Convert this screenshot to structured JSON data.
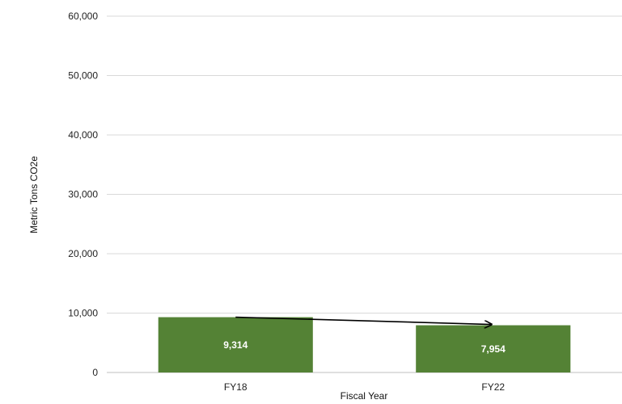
{
  "chart_data": {
    "type": "bar",
    "title": "",
    "xlabel": "Fiscal Year",
    "ylabel": "Metric Tons CO2e",
    "categories": [
      "FY18",
      "FY22"
    ],
    "values": [
      9314,
      7954
    ],
    "value_labels": [
      "9,314",
      "7,954"
    ],
    "ylim": [
      0,
      60000
    ],
    "yticks": [
      0,
      10000,
      20000,
      30000,
      40000,
      50000,
      60000
    ],
    "ytick_labels": [
      "0",
      "10,000",
      "20,000",
      "30,000",
      "40,000",
      "50,000",
      "60,000"
    ],
    "grid": true,
    "legend": "none",
    "annotations": [
      {
        "type": "trend-arrow",
        "from": "FY18",
        "to": "FY22"
      }
    ]
  },
  "colors": {
    "bar": "#548235",
    "bar_label": "#ffffff",
    "gridline": "#d9d9d9",
    "arrow": "#000000"
  }
}
